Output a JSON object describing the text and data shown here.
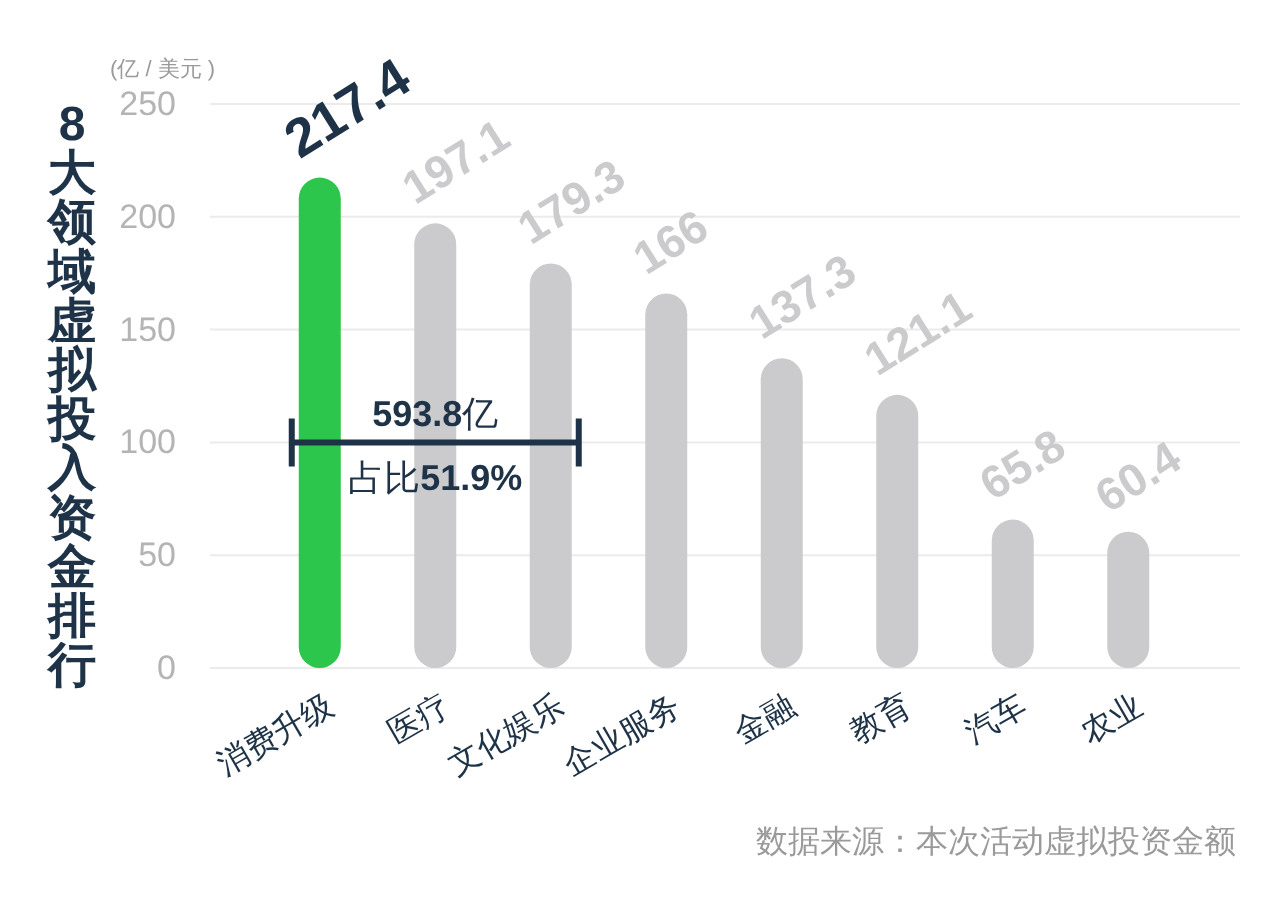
{
  "chart_data": {
    "type": "bar",
    "title": "8大领域虚拟投入资金排行",
    "ylabel": "(亿 / 美元 )",
    "categories": [
      "消费升级",
      "医疗",
      "文化娱乐",
      "企业服务",
      "金融",
      "教育",
      "汽车",
      "农业"
    ],
    "values": [
      217.4,
      197.1,
      179.3,
      166,
      137.3,
      121.1,
      65.8,
      60.4
    ],
    "colors": [
      "#2cc64c",
      "#cbcbcd",
      "#cbcbcd",
      "#cbcbcd",
      "#cbcbcd",
      "#cbcbcd",
      "#cbcbcd",
      "#cbcbcd"
    ],
    "data_labels": true,
    "ylim": [
      0,
      250
    ],
    "yticks": [
      0,
      50,
      100,
      150,
      200,
      250
    ],
    "grid": "y",
    "annotations": [
      {
        "text": "**593.8**亿",
        "x": "医疗",
        "y": 100
      },
      {
        "text": "占比**51.9%**",
        "x": "医疗",
        "y": 100
      },
      "数据来源：本次活动虚拟投资金额"
    ]
  }
}
